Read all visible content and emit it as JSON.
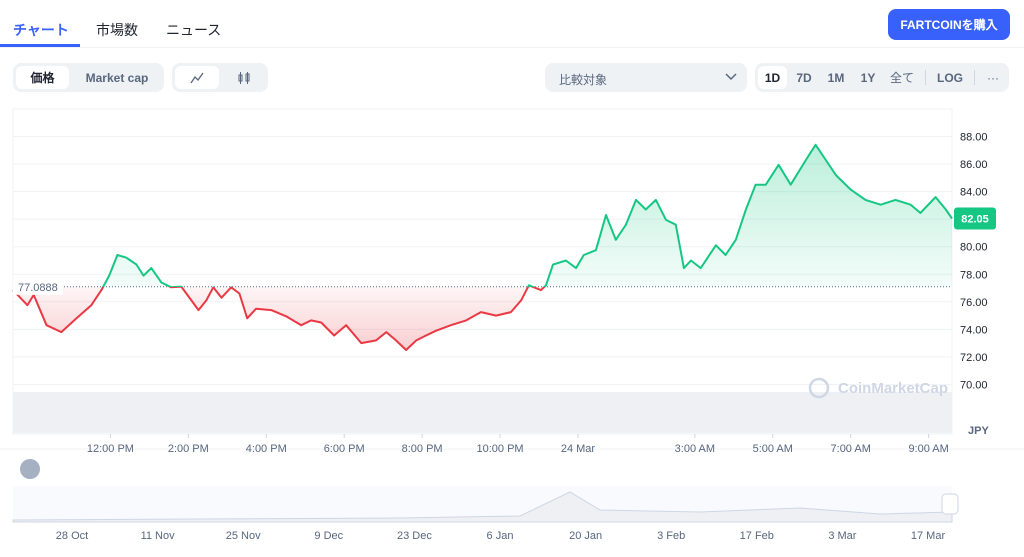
{
  "tabs": [
    "チャート",
    "市場数",
    "ニュース"
  ],
  "buy_button": "FARTCOINを購入",
  "toggle": [
    "価格",
    "Market cap"
  ],
  "compare": "比較対象",
  "ranges": [
    "1D",
    "7D",
    "1M",
    "1Y",
    "全て",
    "LOG",
    "···"
  ],
  "chart_data": {
    "type": "line",
    "x": [
      9.5,
      9.87,
      10.03,
      10.36,
      10.74,
      11.13,
      11.51,
      11.77,
      11.97,
      12.18,
      12.41,
      12.67,
      12.85,
      13.05,
      13.31,
      13.56,
      13.82,
      14.08,
      14.26,
      14.46,
      14.64,
      14.85,
      15.1,
      15.31,
      15.51,
      15.74,
      16.13,
      16.51,
      16.9,
      17.15,
      17.41,
      17.74,
      18.05,
      18.44,
      18.82,
      19.08,
      19.33,
      19.59,
      19.85,
      20.1,
      20.36,
      20.74,
      21.13,
      21.51,
      21.9,
      22.28,
      22.54,
      22.74,
      23.05,
      23.18,
      23.36,
      23.69,
      23.95,
      24.15,
      24.46,
      24.72,
      24.97,
      25.23,
      25.49,
      25.74,
      26.0,
      26.26,
      26.51,
      26.72,
      26.9,
      27.15,
      27.54,
      27.79,
      28.05,
      28.31,
      28.56,
      28.82,
      29.15,
      29.46,
      29.85,
      30.1,
      30.36,
      30.62,
      31.0,
      31.38,
      31.77,
      32.15,
      32.54,
      32.79,
      33.18,
      33.44,
      33.6
    ],
    "values": [
      76.85,
      75.75,
      76.5,
      74.3,
      73.8,
      74.8,
      75.75,
      76.85,
      77.9,
      79.4,
      79.2,
      78.7,
      77.9,
      78.45,
      77.4,
      77.05,
      77.1,
      76.1,
      75.4,
      76.1,
      77.05,
      76.3,
      77.05,
      76.6,
      74.8,
      75.5,
      75.4,
      74.95,
      74.3,
      74.65,
      74.5,
      73.55,
      74.3,
      73.0,
      73.2,
      73.8,
      73.2,
      72.5,
      73.2,
      73.55,
      73.9,
      74.3,
      74.65,
      75.25,
      75.0,
      75.25,
      76.1,
      77.2,
      76.85,
      77.2,
      78.7,
      79.0,
      78.45,
      79.4,
      79.75,
      82.3,
      80.5,
      81.6,
      83.4,
      82.7,
      83.4,
      81.95,
      81.6,
      78.45,
      79.0,
      78.45,
      80.1,
      79.4,
      80.5,
      82.7,
      84.5,
      84.5,
      85.95,
      84.5,
      86.3,
      87.4,
      86.3,
      85.2,
      84.15,
      83.4,
      83.05,
      83.4,
      83.05,
      82.45,
      83.6,
      82.7,
      82.05
    ],
    "baseline": 77.0888,
    "current": 82.05,
    "up_color": "#16c784",
    "down_color": "#ea3943",
    "xlim": [
      9.5,
      33.6
    ],
    "ylim": [
      66.4,
      90
    ],
    "xticks": [
      {
        "value": 12,
        "label": "12:00 PM"
      },
      {
        "value": 14,
        "label": "2:00 PM"
      },
      {
        "value": 16,
        "label": "4:00 PM"
      },
      {
        "value": 18,
        "label": "6:00 PM"
      },
      {
        "value": 20,
        "label": "8:00 PM"
      },
      {
        "value": 22,
        "label": "10:00 PM"
      },
      {
        "value": 24,
        "label": "24 Mar"
      },
      {
        "value": 27,
        "label": "3:00 AM"
      },
      {
        "value": 29,
        "label": "5:00 AM"
      },
      {
        "value": 31,
        "label": "7:00 AM"
      },
      {
        "value": 33,
        "label": "9:00 AM"
      }
    ],
    "yticks": [
      {
        "value": 70,
        "label": "70.00"
      },
      {
        "value": 72,
        "label": "72.00"
      },
      {
        "value": 74,
        "label": "74.00"
      },
      {
        "value": 76,
        "label": "76.00"
      },
      {
        "value": 78,
        "label": "78.00"
      },
      {
        "value": 80,
        "label": "80.00"
      },
      {
        "value": 82,
        "label": "82.00"
      },
      {
        "value": 84,
        "label": "84.00"
      },
      {
        "value": 86,
        "label": "86.00"
      },
      {
        "value": 88,
        "label": "88.00"
      }
    ],
    "grid": true,
    "y_unit": "JPY",
    "watermark": "CoinMarketCap"
  },
  "navigator_labels": [
    "28 Oct",
    "11 Nov",
    "25 Nov",
    "9 Dec",
    "23 Dec",
    "6 Jan",
    "20 Jan",
    "3 Feb",
    "17 Feb",
    "3 Mar",
    "17 Mar"
  ]
}
